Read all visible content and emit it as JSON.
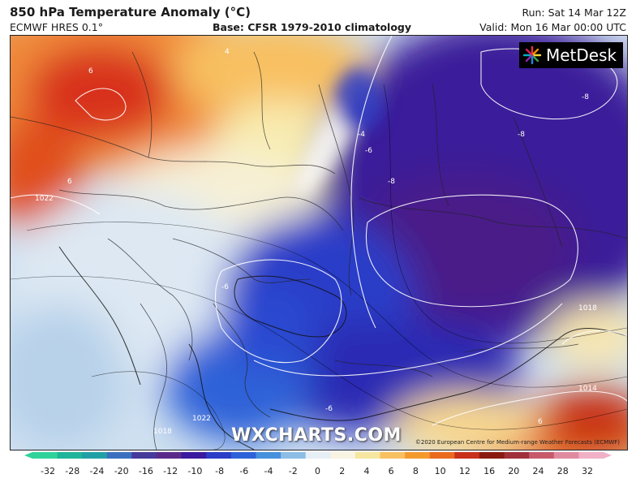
{
  "header": {
    "title": "850 hPa Temperature Anomaly (°C)",
    "subtitle": "ECMWF HRES 0.1°",
    "base": "Base: CFSR 1979-2010 climatology",
    "run": "Run: Sat 14 Mar 12Z",
    "valid": "Valid: Mon 16 Mar 00:00 UTC"
  },
  "logo": {
    "text": "MetDesk",
    "icon": "metdesk-sun-icon"
  },
  "watermark": "WXCHARTS.COM",
  "copyright": "©2020 European Centre for Medium-range Weather Forecasts (ECMWF)",
  "map": {
    "contour_labels": [
      "6",
      "-4",
      "-6",
      "-8",
      "-8",
      "-8",
      "1022",
      "6",
      "-6",
      "1018",
      "1014",
      "6",
      "-6",
      "1018",
      "1022",
      "4"
    ],
    "colors": {
      "warm": "#e04a1a",
      "cold": "#3a1a9a",
      "neutral": "#f2f2f2"
    }
  },
  "colorbar": {
    "ticks": [
      "-32",
      "-28",
      "-24",
      "-20",
      "-16",
      "-12",
      "-10",
      "-8",
      "-6",
      "-4",
      "-2",
      "0",
      "2",
      "4",
      "6",
      "8",
      "10",
      "12",
      "16",
      "20",
      "24",
      "28",
      "32"
    ],
    "colors": [
      "#2fd39a",
      "#1fb59a",
      "#20a0a6",
      "#3a6fc0",
      "#463a9a",
      "#5a2a8a",
      "#3a1a9e",
      "#2a3cc8",
      "#2e62d8",
      "#4690dc",
      "#8cbde6",
      "#e6eef6",
      "#f8f4e2",
      "#f6e6a0",
      "#f8c060",
      "#f49a2c",
      "#ea6a1e",
      "#c8301a",
      "#8a1a10",
      "#a0303a",
      "#c65a6a",
      "#e08aa0",
      "#f0b0c6"
    ]
  }
}
